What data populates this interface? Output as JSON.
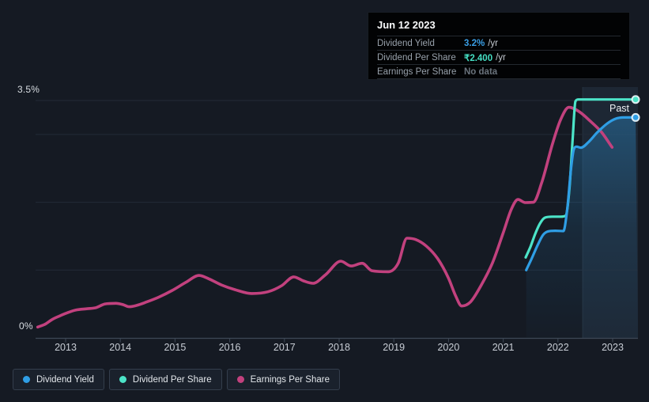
{
  "tooltip": {
    "date": "Jun 12 2023",
    "rows": [
      {
        "label": "Dividend Yield",
        "value": "3.2%",
        "unit": "/yr",
        "color": "#3a9fe6"
      },
      {
        "label": "Dividend Per Share",
        "value": "₹2.400",
        "unit": "/yr",
        "color": "#45dfc4"
      },
      {
        "label": "Earnings Per Share",
        "value": "No data",
        "unit": "",
        "color": "#6a737c"
      }
    ]
  },
  "axis": {
    "y_top_label": "3.5%",
    "y_bottom_label": "0%",
    "x_ticks": [
      "2013",
      "2014",
      "2015",
      "2016",
      "2017",
      "2018",
      "2019",
      "2020",
      "2021",
      "2022",
      "2023"
    ]
  },
  "past_label": "Past",
  "legend": [
    {
      "label": "Dividend Yield",
      "color": "#2f9ee5"
    },
    {
      "label": "Dividend Per Share",
      "color": "#4ce4c8"
    },
    {
      "label": "Earnings Per Share",
      "color": "#c2417e"
    }
  ],
  "colors": {
    "background": "#151a23",
    "grid": "#232b37",
    "axis": "#3e4856",
    "tick_text": "#c8cdd5",
    "past_band": "rgba(108,158,210,0.10)",
    "area_fill": "#2f9ee5",
    "tooltip_bg": "#020304"
  },
  "chart_data": {
    "type": "line",
    "title": "",
    "xlabel": "",
    "ylabel": "Dividend Yield (%)",
    "x_range": [
      2012.35,
      2023.45
    ],
    "y_axis": {
      "min": 0,
      "max": 3.5,
      "unit": "%",
      "labeled_ticks": [
        "0%",
        "3.5%"
      ]
    },
    "gridlines_pct": [
      1,
      2,
      3,
      3.5
    ],
    "legend_position": "bottom-left",
    "highlight_start": 2021.41,
    "past_band_start": 2022.45,
    "dps_axis_factor": 1.4646,
    "series": [
      {
        "name": "Dividend Yield",
        "color": "#2f9ee5",
        "unit": "%",
        "area": true,
        "end_dot": true,
        "current": "3.2% /yr",
        "points": [
          [
            2021.42,
            1.0
          ],
          [
            2021.52,
            1.17
          ],
          [
            2021.63,
            1.37
          ],
          [
            2021.73,
            1.52
          ],
          [
            2021.82,
            1.57
          ],
          [
            2021.95,
            1.58
          ],
          [
            2022.1,
            1.575
          ],
          [
            2022.17,
            1.9
          ],
          [
            2022.24,
            2.5
          ],
          [
            2022.29,
            2.78
          ],
          [
            2022.34,
            2.82
          ],
          [
            2022.42,
            2.805
          ],
          [
            2022.55,
            2.88
          ],
          [
            2022.72,
            3.03
          ],
          [
            2022.9,
            3.16
          ],
          [
            2023.05,
            3.23
          ],
          [
            2023.2,
            3.25
          ],
          [
            2023.42,
            3.25
          ]
        ]
      },
      {
        "name": "Dividend Per Share",
        "color": "#4ce4c8",
        "unit": "₹",
        "end_dot": true,
        "current": "₹2.400 /yr",
        "points": [
          [
            2021.41,
            0.81
          ],
          [
            2021.5,
            0.92
          ],
          [
            2021.58,
            1.04
          ],
          [
            2021.67,
            1.15
          ],
          [
            2021.76,
            1.21
          ],
          [
            2021.9,
            1.22
          ],
          [
            2022.05,
            1.22
          ],
          [
            2022.14,
            1.23
          ],
          [
            2022.21,
            1.5
          ],
          [
            2022.27,
            2.01
          ],
          [
            2022.32,
            2.38
          ],
          [
            2022.37,
            2.4
          ],
          [
            2022.6,
            2.4
          ],
          [
            2023.0,
            2.4
          ],
          [
            2023.42,
            2.4
          ]
        ]
      },
      {
        "name": "Earnings Per Share",
        "color": "#c2417e",
        "unit": "relative",
        "current": "No data",
        "points": [
          [
            2012.49,
            0.16
          ],
          [
            2012.62,
            0.2
          ],
          [
            2012.75,
            0.27
          ],
          [
            2012.88,
            0.32
          ],
          [
            2013.0,
            0.36
          ],
          [
            2013.18,
            0.41
          ],
          [
            2013.4,
            0.43
          ],
          [
            2013.55,
            0.445
          ],
          [
            2013.72,
            0.5
          ],
          [
            2013.92,
            0.51
          ],
          [
            2014.05,
            0.49
          ],
          [
            2014.16,
            0.46
          ],
          [
            2014.3,
            0.48
          ],
          [
            2014.48,
            0.53
          ],
          [
            2014.7,
            0.6
          ],
          [
            2014.95,
            0.7
          ],
          [
            2015.2,
            0.82
          ],
          [
            2015.44,
            0.92
          ],
          [
            2015.62,
            0.87
          ],
          [
            2015.85,
            0.78
          ],
          [
            2016.1,
            0.71
          ],
          [
            2016.4,
            0.655
          ],
          [
            2016.7,
            0.68
          ],
          [
            2016.95,
            0.77
          ],
          [
            2017.17,
            0.9
          ],
          [
            2017.35,
            0.84
          ],
          [
            2017.52,
            0.805
          ],
          [
            2017.75,
            0.93
          ],
          [
            2018.03,
            1.13
          ],
          [
            2018.22,
            1.06
          ],
          [
            2018.42,
            1.1
          ],
          [
            2018.6,
            0.99
          ],
          [
            2018.9,
            0.975
          ],
          [
            2019.08,
            1.1
          ],
          [
            2019.24,
            1.47
          ],
          [
            2019.4,
            1.45
          ],
          [
            2019.6,
            1.35
          ],
          [
            2019.8,
            1.17
          ],
          [
            2020.0,
            0.88
          ],
          [
            2020.13,
            0.62
          ],
          [
            2020.24,
            0.47
          ],
          [
            2020.4,
            0.53
          ],
          [
            2020.6,
            0.78
          ],
          [
            2020.8,
            1.1
          ],
          [
            2021.0,
            1.55
          ],
          [
            2021.15,
            1.9
          ],
          [
            2021.27,
            2.04
          ],
          [
            2021.4,
            1.995
          ],
          [
            2021.55,
            2.0
          ],
          [
            2021.7,
            2.28
          ],
          [
            2021.9,
            2.86
          ],
          [
            2022.05,
            3.22
          ],
          [
            2022.2,
            3.4
          ],
          [
            2022.38,
            3.34
          ],
          [
            2022.6,
            3.19
          ],
          [
            2022.8,
            3.03
          ],
          [
            2022.99,
            2.81
          ]
        ]
      }
    ]
  }
}
